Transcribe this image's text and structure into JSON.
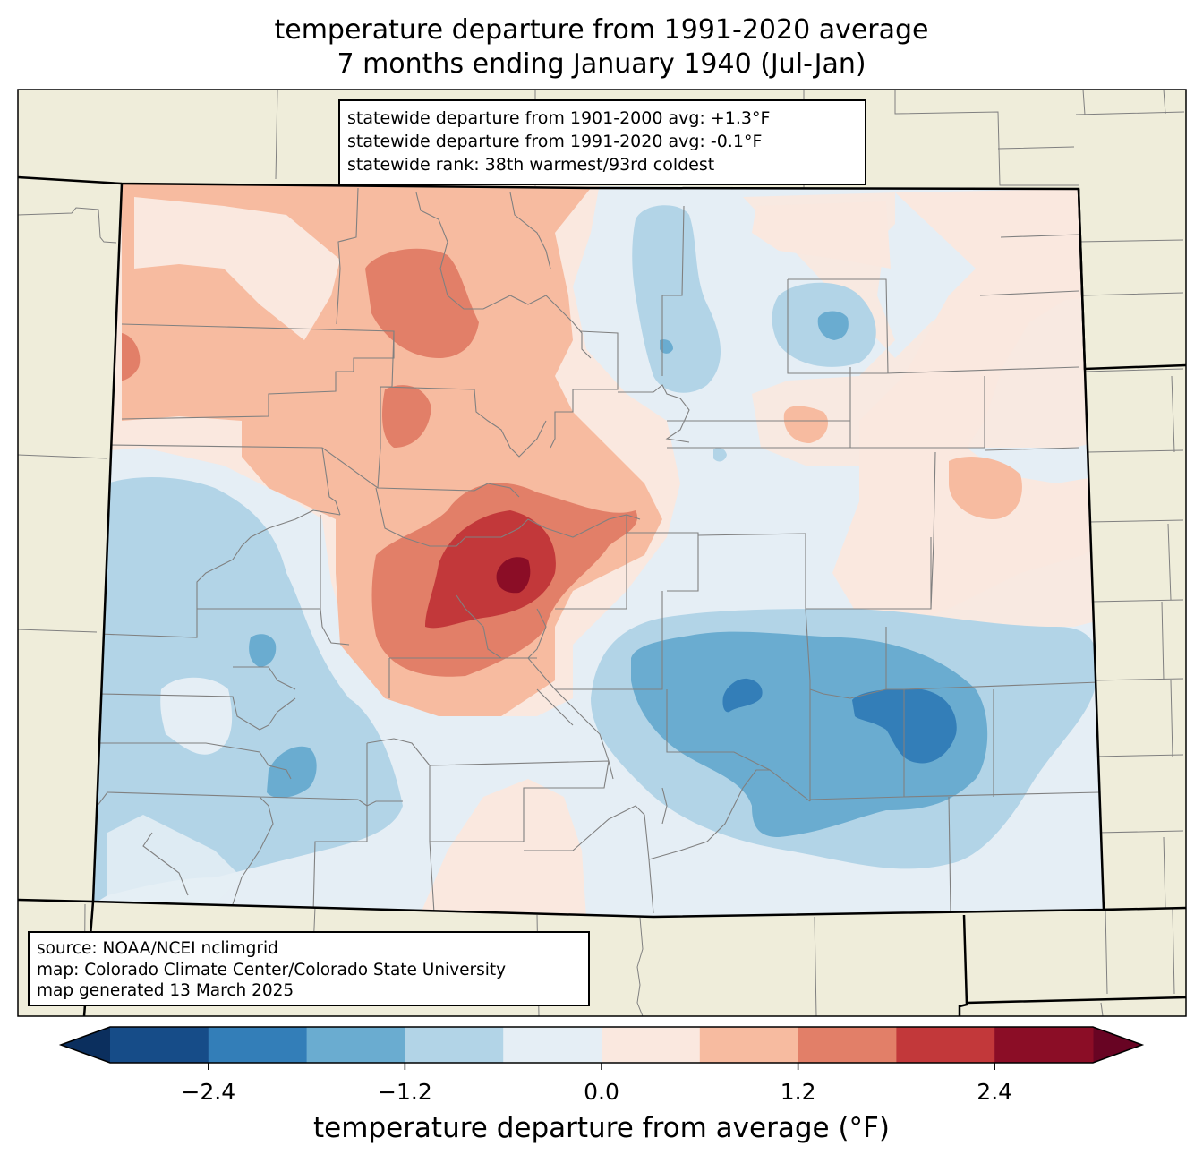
{
  "title": {
    "line1": "temperature departure from 1991-2020 average",
    "line2": "7 months ending January 1940 (Jul-Jan)"
  },
  "stats_box": {
    "line1": "statewide departure from 1901-2000 avg: +1.3°F",
    "line2": "statewide departure from 1991-2020 avg: -0.1°F",
    "line3": "statewide rank: 38th warmest/93rd coldest"
  },
  "source_box": {
    "line1": "source: NOAA/NCEI nclimgrid",
    "line2": "map: Colorado Climate Center/Colorado State University",
    "line3": "map generated 13 March 2025"
  },
  "colors": {
    "land_background": "#efedda",
    "county_line": "#808080",
    "state_line": "#000000"
  },
  "colorbar": {
    "label": "temperature departure from average (°F)",
    "ticks": [
      "−2.4",
      "−1.2",
      "0.0",
      "1.2",
      "2.4"
    ],
    "tick_values": [
      -2.4,
      -1.2,
      0.0,
      1.2,
      2.4
    ],
    "bounds": [
      -3.0,
      -2.4,
      -1.8,
      -1.2,
      -0.6,
      0.0,
      0.6,
      1.2,
      1.8,
      2.4,
      3.0
    ],
    "colors": [
      "#164c88",
      "#337eb8",
      "#6aacd0",
      "#b2d4e7",
      "#e5eef5",
      "#fae8df",
      "#f7bba0",
      "#e27f68",
      "#c2383a",
      "#8b0d26"
    ],
    "under_color": "#0b2f5e",
    "over_color": "#680423",
    "extend": "both"
  },
  "chart_data": {
    "type": "heatmap",
    "title": "temperature departure from 1991-2020 average — 7 months ending January 1940 (Jul-Jan)",
    "units": "°F",
    "region": "Colorado",
    "levels": [
      -3.0,
      -2.4,
      -1.8,
      -1.2,
      -0.6,
      0.0,
      0.6,
      1.2,
      1.8,
      2.4,
      3.0
    ],
    "notable_areas": [
      {
        "area": "central mountains (warm core)",
        "range": [
          2.4,
          3.0
        ]
      },
      {
        "area": "north-central mountains",
        "range": [
          1.2,
          1.8
        ]
      },
      {
        "area": "southeast plains (cold core)",
        "range": [
          -2.4,
          -1.8
        ]
      },
      {
        "area": "southwest",
        "range": [
          -1.8,
          -0.6
        ]
      },
      {
        "area": "northeast plains",
        "range": [
          -1.2,
          0.6
        ]
      }
    ]
  }
}
